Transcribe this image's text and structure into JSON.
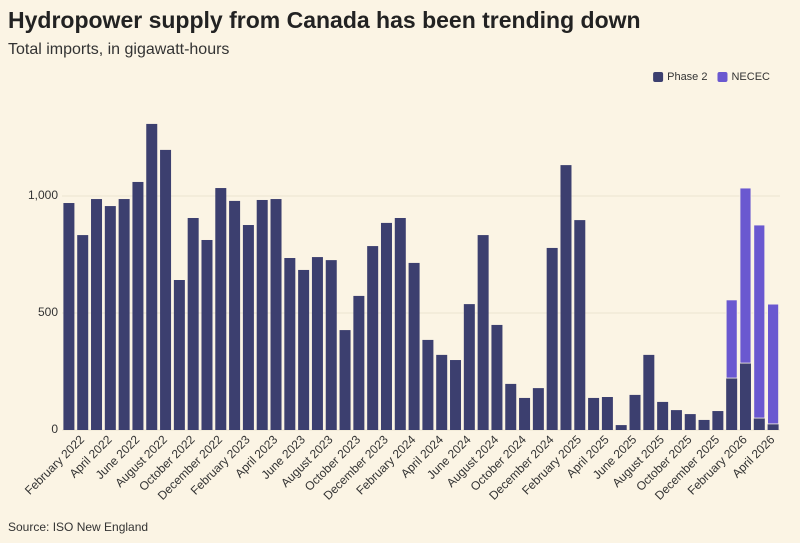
{
  "chart_data": {
    "type": "stacked_bar",
    "title": "Hydropower supply from Canada has been trending down",
    "subtitle": "Total imports, in gigawatt-hours",
    "source": "Source: ISO New England",
    "categories": [
      null,
      "February 2022",
      null,
      "April 2022",
      null,
      "June 2022",
      null,
      "August 2022",
      null,
      "October 2022",
      null,
      "December 2022",
      null,
      "February 2023",
      null,
      "April 2023",
      null,
      "June 2023",
      null,
      "August 2023",
      null,
      "October 2023",
      null,
      "December 2023",
      null,
      "February 2024",
      null,
      "April 2024",
      null,
      "June 2024",
      null,
      "August 2024",
      null,
      "October 2024",
      null,
      "December 2024",
      null,
      "February 2025",
      null,
      "April 2025",
      null,
      "June 2025",
      null,
      "August 2025",
      null,
      "October 2025",
      null,
      "December 2025",
      null,
      "February 2026",
      null,
      "April 2026"
    ],
    "series": [
      {
        "name": "Phase 2",
        "color": "#3c3f6f",
        "values": [
          970,
          833,
          987,
          957,
          987,
          1060,
          1308,
          1197,
          641,
          906,
          812,
          1034,
          979,
          876,
          983,
          987,
          735,
          684,
          739,
          726,
          427,
          573,
          786,
          885,
          906,
          714,
          385,
          321,
          299,
          538,
          833,
          449,
          197,
          137,
          179,
          778,
          1132,
          897,
          137,
          141,
          21,
          150,
          321,
          120,
          85,
          68,
          43,
          81,
          222,
          286,
          51,
          26
        ]
      },
      {
        "name": "NECEC",
        "color": "#6a58d0",
        "values": [
          null,
          null,
          null,
          null,
          null,
          null,
          null,
          null,
          null,
          null,
          null,
          null,
          null,
          null,
          null,
          null,
          null,
          null,
          null,
          null,
          null,
          null,
          null,
          null,
          null,
          null,
          null,
          null,
          null,
          null,
          null,
          null,
          null,
          null,
          null,
          null,
          null,
          null,
          null,
          null,
          null,
          null,
          null,
          null,
          null,
          null,
          null,
          null,
          334,
          748,
          825,
          512
        ]
      }
    ],
    "ylim": [
      0,
      1350
    ],
    "yticks": [
      0,
      500,
      {
        "value": 1000,
        "label": "1,000"
      }
    ],
    "grid": true,
    "legend": "top-right"
  }
}
